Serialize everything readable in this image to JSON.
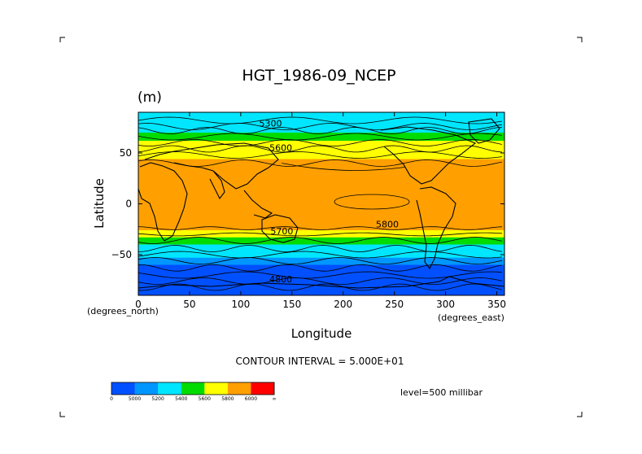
{
  "chart_data": {
    "type": "heatmap",
    "title": "HGT_1986-09_NCEP",
    "units": "(m)",
    "xlabel": "Longitude",
    "ylabel": "Latitude",
    "x_units_label": "(degrees_east)",
    "y_units_label": "(degrees_north)",
    "xlim": [
      0,
      357.5
    ],
    "ylim": [
      -90,
      90
    ],
    "x_ticks": [
      0,
      50,
      100,
      150,
      200,
      250,
      300,
      350
    ],
    "y_ticks": [
      50,
      0,
      -50
    ],
    "contour_interval_text": "CONTOUR INTERVAL = 5.000E+01",
    "level_text": "level=500 millibar",
    "colorbar": {
      "colors": [
        "#0050ff",
        "#0096ff",
        "#00e6ff",
        "#00dc00",
        "#ffff00",
        "#ffa000",
        "#ff0000"
      ],
      "labels": [
        "0",
        "5000",
        "5200",
        "5400",
        "5600",
        "5800",
        "6000",
        "∞"
      ]
    },
    "contour_labels": [
      {
        "text": "5300",
        "lon": 118,
        "lat": 76
      },
      {
        "text": "5600",
        "lon": 128,
        "lat": 52
      },
      {
        "text": "5800",
        "lon": 232,
        "lat": -23
      },
      {
        "text": "5700",
        "lon": 129,
        "lat": -30
      },
      {
        "text": "4800",
        "lon": 128,
        "lat": -77
      }
    ],
    "bands_lat_top": [
      90,
      79,
      70,
      62,
      58,
      44,
      -26,
      -33,
      -40,
      -53,
      -60,
      -67
    ],
    "bands_colors": [
      "#00e6ff",
      "#00e6ff",
      "#00dc00",
      "#ffff00",
      "#ffff00",
      "#ffa000",
      "#ffff00",
      "#00dc00",
      "#00e6ff",
      "#0096ff",
      "#0050ff",
      "#0050ff"
    ]
  }
}
